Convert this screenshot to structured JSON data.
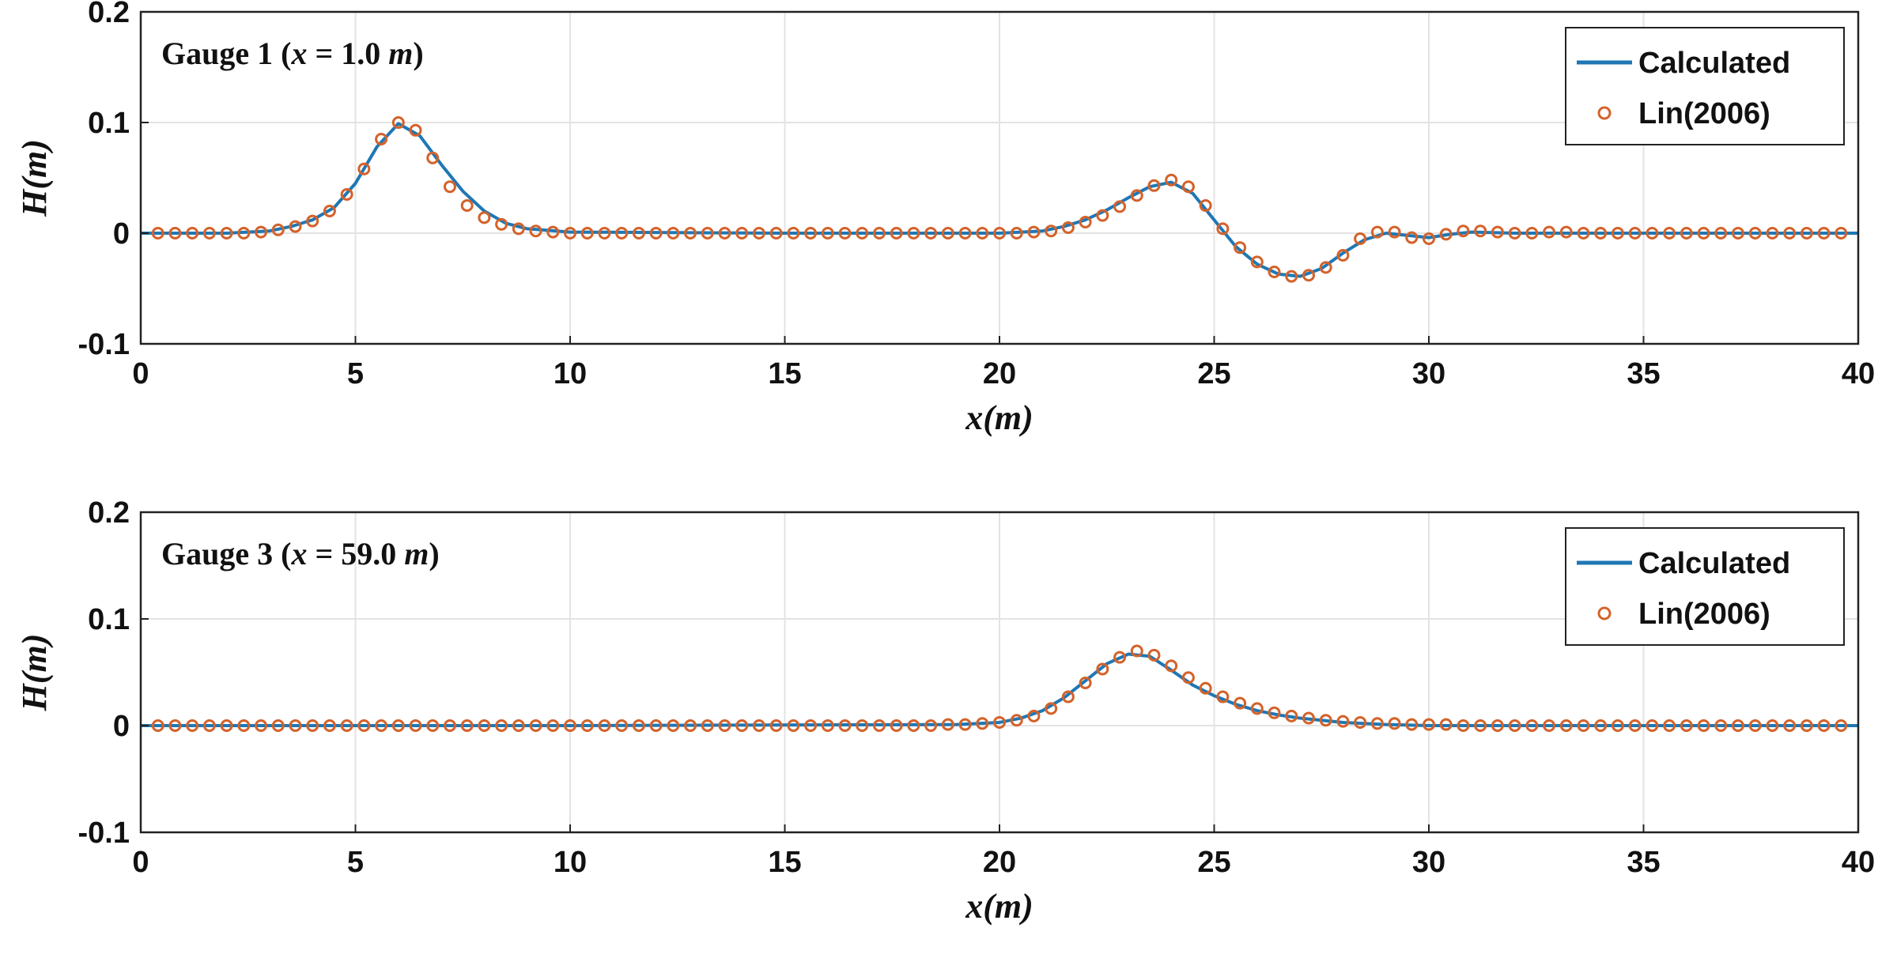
{
  "chart_data": [
    {
      "type": "line",
      "annotation": {
        "prefix": "Gauge 1 (",
        "var": "x",
        "eq": " = 1.0 ",
        "unit": "m",
        "suffix": ")"
      },
      "xlabel": "x(m)",
      "ylabel": "H(m)",
      "xlim": [
        0,
        40
      ],
      "ylim": [
        -0.1,
        0.2
      ],
      "xticks": [
        "0",
        "5",
        "10",
        "15",
        "20",
        "25",
        "30",
        "35",
        "40"
      ],
      "yticks": [
        "-0.1",
        "0",
        "0.1",
        "0.2"
      ],
      "grid": true,
      "legend_position": "top-right",
      "series": [
        {
          "name": "Calculated",
          "style": "line",
          "color": "#1f77b4",
          "x": [
            0,
            1,
            2,
            3,
            3.5,
            4,
            4.5,
            5,
            5.5,
            6,
            6.5,
            7,
            7.5,
            8,
            8.5,
            9,
            10,
            15,
            20,
            21,
            21.5,
            22,
            22.5,
            23,
            23.5,
            24,
            24.5,
            25,
            25.5,
            26,
            26.5,
            27,
            27.5,
            28,
            28.5,
            29,
            29.5,
            30,
            30.5,
            31,
            32,
            35,
            40
          ],
          "y": [
            0,
            0,
            0,
            0.002,
            0.006,
            0.012,
            0.023,
            0.045,
            0.078,
            0.099,
            0.088,
            0.062,
            0.038,
            0.02,
            0.009,
            0.004,
            0.001,
            0,
            0,
            0.002,
            0.006,
            0.012,
            0.021,
            0.032,
            0.042,
            0.046,
            0.036,
            0.012,
            -0.012,
            -0.028,
            -0.037,
            -0.039,
            -0.032,
            -0.018,
            -0.006,
            0,
            -0.002,
            -0.004,
            -0.001,
            0.001,
            0,
            0,
            0
          ]
        },
        {
          "name": "Lin(2006)",
          "style": "markers",
          "color": "#d4622a",
          "x": [
            0.4,
            0.8,
            1.2,
            1.6,
            2.0,
            2.4,
            2.8,
            3.2,
            3.6,
            4.0,
            4.4,
            4.8,
            5.2,
            5.6,
            6.0,
            6.4,
            6.8,
            7.2,
            7.6,
            8.0,
            8.4,
            8.8,
            9.2,
            9.6,
            10.0,
            10.4,
            10.8,
            11.2,
            11.6,
            12.0,
            12.4,
            12.8,
            13.2,
            13.6,
            14.0,
            14.4,
            14.8,
            15.2,
            15.6,
            16.0,
            16.4,
            16.8,
            17.2,
            17.6,
            18.0,
            18.4,
            18.8,
            19.2,
            19.6,
            20.0,
            20.4,
            20.8,
            21.2,
            21.6,
            22.0,
            22.4,
            22.8,
            23.2,
            23.6,
            24.0,
            24.4,
            24.8,
            25.2,
            25.6,
            26.0,
            26.4,
            26.8,
            27.2,
            27.6,
            28.0,
            28.4,
            28.8,
            29.2,
            29.6,
            30.0,
            30.4,
            30.8,
            31.2,
            31.6,
            32.0,
            32.4,
            32.8,
            33.2,
            33.6,
            34.0,
            34.4,
            34.8,
            35.2,
            35.6,
            36.0,
            36.4,
            36.8,
            37.2,
            37.6,
            38.0,
            38.4,
            38.8,
            39.2,
            39.6
          ],
          "y": [
            0,
            0,
            0,
            0,
            0,
            0,
            0.001,
            0.003,
            0.006,
            0.011,
            0.02,
            0.035,
            0.058,
            0.085,
            0.1,
            0.093,
            0.068,
            0.042,
            0.025,
            0.014,
            0.008,
            0.004,
            0.002,
            0.001,
            0,
            0,
            0,
            0,
            0,
            0,
            0,
            0,
            0,
            0,
            0,
            0,
            0,
            0,
            0,
            0,
            0,
            0,
            0,
            0,
            0,
            0,
            0,
            0,
            0,
            0,
            0,
            0.001,
            0.002,
            0.005,
            0.01,
            0.016,
            0.024,
            0.034,
            0.043,
            0.048,
            0.042,
            0.025,
            0.004,
            -0.013,
            -0.026,
            -0.035,
            -0.039,
            -0.038,
            -0.031,
            -0.02,
            -0.005,
            0.001,
            0.001,
            -0.004,
            -0.005,
            -0.001,
            0.002,
            0.002,
            0.001,
            0,
            0,
            0.001,
            0.001,
            0,
            0,
            0,
            0,
            0,
            0,
            0,
            0,
            0,
            0,
            0,
            0,
            0,
            0,
            0,
            0
          ]
        }
      ]
    },
    {
      "type": "line",
      "annotation": {
        "prefix": "Gauge 3 (",
        "var": "x",
        "eq": " = 59.0 ",
        "unit": "m",
        "suffix": ")"
      },
      "xlabel": "x(m)",
      "ylabel": "H(m)",
      "xlim": [
        0,
        40
      ],
      "ylim": [
        -0.1,
        0.2
      ],
      "xticks": [
        "0",
        "5",
        "10",
        "15",
        "20",
        "25",
        "30",
        "35",
        "40"
      ],
      "yticks": [
        "-0.1",
        "0",
        "0.1",
        "0.2"
      ],
      "grid": true,
      "legend_position": "top-right",
      "series": [
        {
          "name": "Calculated",
          "style": "line",
          "color": "#1f77b4",
          "x": [
            0,
            10,
            19,
            20,
            20.5,
            21,
            21.5,
            22,
            22.5,
            23,
            23.5,
            24,
            24.5,
            25,
            25.5,
            26,
            26.5,
            27,
            27.5,
            28,
            29,
            30,
            35,
            40
          ],
          "y": [
            0,
            0,
            0.001,
            0.003,
            0.007,
            0.014,
            0.026,
            0.042,
            0.058,
            0.067,
            0.065,
            0.052,
            0.038,
            0.028,
            0.02,
            0.014,
            0.01,
            0.007,
            0.005,
            0.003,
            0.001,
            0,
            0,
            0
          ]
        },
        {
          "name": "Lin(2006)",
          "style": "markers",
          "color": "#d4622a",
          "x": [
            0.4,
            0.8,
            1.2,
            1.6,
            2.0,
            2.4,
            2.8,
            3.2,
            3.6,
            4.0,
            4.4,
            4.8,
            5.2,
            5.6,
            6.0,
            6.4,
            6.8,
            7.2,
            7.6,
            8.0,
            8.4,
            8.8,
            9.2,
            9.6,
            10.0,
            10.4,
            10.8,
            11.2,
            11.6,
            12.0,
            12.4,
            12.8,
            13.2,
            13.6,
            14.0,
            14.4,
            14.8,
            15.2,
            15.6,
            16.0,
            16.4,
            16.8,
            17.2,
            17.6,
            18.0,
            18.4,
            18.8,
            19.2,
            19.6,
            20.0,
            20.4,
            20.8,
            21.2,
            21.6,
            22.0,
            22.4,
            22.8,
            23.2,
            23.6,
            24.0,
            24.4,
            24.8,
            25.2,
            25.6,
            26.0,
            26.4,
            26.8,
            27.2,
            27.6,
            28.0,
            28.4,
            28.8,
            29.2,
            29.6,
            30.0,
            30.4,
            30.8,
            31.2,
            31.6,
            32.0,
            32.4,
            32.8,
            33.2,
            33.6,
            34.0,
            34.4,
            34.8,
            35.2,
            35.6,
            36.0,
            36.4,
            36.8,
            37.2,
            37.6,
            38.0,
            38.4,
            38.8,
            39.2,
            39.6
          ],
          "y": [
            0,
            0,
            0,
            0,
            0,
            0,
            0,
            0,
            0,
            0,
            0,
            0,
            0,
            0,
            0,
            0,
            0,
            0,
            0,
            0,
            0,
            0,
            0,
            0,
            0,
            0,
            0,
            0,
            0,
            0,
            0,
            0,
            0,
            0,
            0,
            0,
            0,
            0,
            0,
            0,
            0,
            0,
            0,
            0,
            0,
            0,
            0.001,
            0.001,
            0.002,
            0.003,
            0.005,
            0.009,
            0.016,
            0.027,
            0.04,
            0.053,
            0.064,
            0.07,
            0.066,
            0.056,
            0.045,
            0.035,
            0.027,
            0.021,
            0.016,
            0.012,
            0.009,
            0.007,
            0.005,
            0.004,
            0.003,
            0.002,
            0.002,
            0.001,
            0.001,
            0.001,
            0,
            0,
            0,
            0,
            0,
            0,
            0,
            0,
            0,
            0,
            0,
            0,
            0,
            0,
            0,
            0,
            0,
            0,
            0,
            0,
            0,
            0,
            0
          ]
        }
      ]
    }
  ]
}
